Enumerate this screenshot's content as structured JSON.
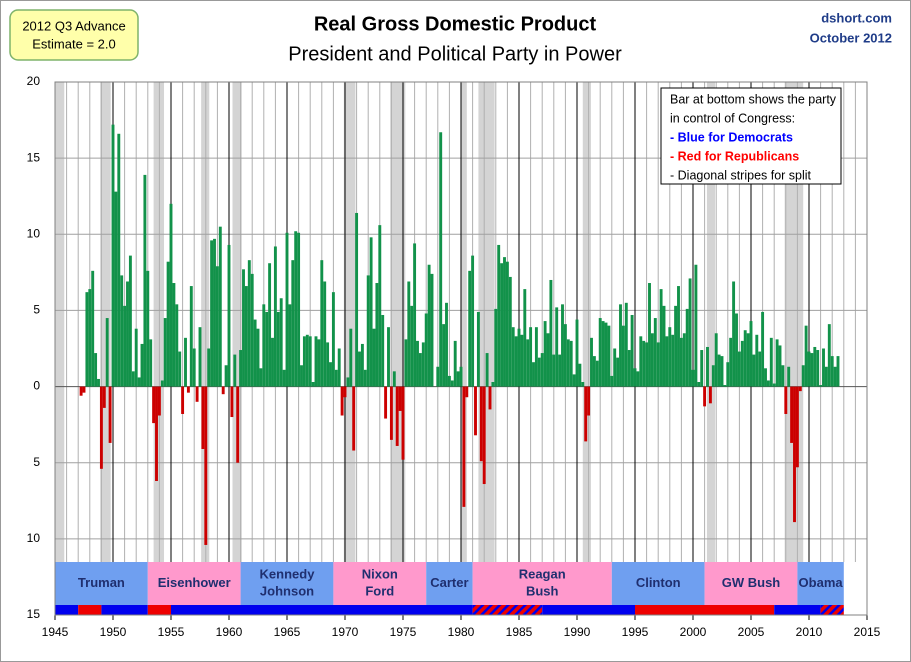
{
  "chart_data": {
    "type": "bar",
    "title": "Real Gross Domestic Product",
    "subtitle": "President and Political Party in Power",
    "source": [
      "dshort.com",
      "October 2012"
    ],
    "estimate_note": [
      "2012 Q3 Advance",
      "Estimate = 2.0"
    ],
    "legend_note": [
      {
        "text": "Bar at bottom shows the party",
        "color": "#000000"
      },
      {
        "text": "in control of Congress:",
        "color": "#000000"
      },
      {
        "text": "-  Blue for  Democrats",
        "color": "#0000ff"
      },
      {
        "text": "-  Red for Republicans",
        "color": "#ff0000"
      },
      {
        "text": "-  Diagonal stripes for split",
        "color": "#000000"
      }
    ],
    "colors": {
      "positive": "#12924a",
      "negative": "#cc0000",
      "recession": "#d4d4d4",
      "D_president": "#6f9ff0",
      "R_president": "#ff99cc",
      "D_congress": "#0000ee",
      "R_congress": "#ee0000"
    },
    "xlim": [
      1945,
      2015
    ],
    "xticks": [
      1945,
      1950,
      1955,
      1960,
      1965,
      1970,
      1975,
      1980,
      1985,
      1990,
      1995,
      2000,
      2005,
      2010,
      2015
    ],
    "x_minor_grid": true,
    "ylim": [
      -15,
      20
    ],
    "yticks": [
      {
        "value": -15,
        "label": "15"
      },
      {
        "value": -10,
        "label": "10"
      },
      {
        "value": -5,
        "label": "5"
      },
      0,
      5,
      10,
      15,
      20
    ],
    "grid": true,
    "x": [
      1947.25,
      1947.5,
      1947.75,
      1948,
      1948.25,
      1948.5,
      1948.75,
      1949,
      1949.25,
      1949.5,
      1949.75,
      1950,
      1950.25,
      1950.5,
      1950.75,
      1951,
      1951.25,
      1951.5,
      1951.75,
      1952,
      1952.25,
      1952.5,
      1952.75,
      1953,
      1953.25,
      1953.5,
      1953.75,
      1954,
      1954.25,
      1954.5,
      1954.75,
      1955,
      1955.25,
      1955.5,
      1955.75,
      1956,
      1956.25,
      1956.5,
      1956.75,
      1957,
      1957.25,
      1957.5,
      1957.75,
      1958,
      1958.25,
      1958.5,
      1958.75,
      1959,
      1959.25,
      1959.5,
      1959.75,
      1960,
      1960.25,
      1960.5,
      1960.75,
      1961,
      1961.25,
      1961.5,
      1961.75,
      1962,
      1962.25,
      1962.5,
      1962.75,
      1963,
      1963.25,
      1963.5,
      1963.75,
      1964,
      1964.25,
      1964.5,
      1964.75,
      1965,
      1965.25,
      1965.5,
      1965.75,
      1966,
      1966.25,
      1966.5,
      1966.75,
      1967,
      1967.25,
      1967.5,
      1967.75,
      1968,
      1968.25,
      1968.5,
      1968.75,
      1969,
      1969.25,
      1969.5,
      1969.75,
      1970,
      1970.25,
      1970.5,
      1970.75,
      1971,
      1971.25,
      1971.5,
      1971.75,
      1972,
      1972.25,
      1972.5,
      1972.75,
      1973,
      1973.25,
      1973.5,
      1973.75,
      1974,
      1974.25,
      1974.5,
      1974.75,
      1975,
      1975.25,
      1975.5,
      1975.75,
      1976,
      1976.25,
      1976.5,
      1976.75,
      1977,
      1977.25,
      1977.5,
      1977.75,
      1978,
      1978.25,
      1978.5,
      1978.75,
      1979,
      1979.25,
      1979.5,
      1979.75,
      1980,
      1980.25,
      1980.5,
      1980.75,
      1981,
      1981.25,
      1981.5,
      1981.75,
      1982,
      1982.25,
      1982.5,
      1982.75,
      1983,
      1983.25,
      1983.5,
      1983.75,
      1984,
      1984.25,
      1984.5,
      1984.75,
      1985,
      1985.25,
      1985.5,
      1985.75,
      1986,
      1986.25,
      1986.5,
      1986.75,
      1987,
      1987.25,
      1987.5,
      1987.75,
      1988,
      1988.25,
      1988.5,
      1988.75,
      1989,
      1989.25,
      1989.5,
      1989.75,
      1990,
      1990.25,
      1990.5,
      1990.75,
      1991,
      1991.25,
      1991.5,
      1991.75,
      1992,
      1992.25,
      1992.5,
      1992.75,
      1993,
      1993.25,
      1993.5,
      1993.75,
      1994,
      1994.25,
      1994.5,
      1994.75,
      1995,
      1995.25,
      1995.5,
      1995.75,
      1996,
      1996.25,
      1996.5,
      1996.75,
      1997,
      1997.25,
      1997.5,
      1997.75,
      1998,
      1998.25,
      1998.5,
      1998.75,
      1999,
      1999.25,
      1999.5,
      1999.75,
      2000,
      2000.25,
      2000.5,
      2000.75,
      2001,
      2001.25,
      2001.5,
      2001.75,
      2002,
      2002.25,
      2002.5,
      2002.75,
      2003,
      2003.25,
      2003.5,
      2003.75,
      2004,
      2004.25,
      2004.5,
      2004.75,
      2005,
      2005.25,
      2005.5,
      2005.75,
      2006,
      2006.25,
      2006.5,
      2006.75,
      2007,
      2007.25,
      2007.5,
      2007.75,
      2008,
      2008.25,
      2008.5,
      2008.75,
      2009,
      2009.25,
      2009.5,
      2009.75,
      2010,
      2010.25,
      2010.5,
      2010.75,
      2011,
      2011.25,
      2011.5,
      2011.75,
      2012,
      2012.25,
      2012.5
    ],
    "values": [
      -0.6,
      -0.4,
      6.2,
      6.4,
      7.6,
      2.2,
      0.5,
      -5.4,
      -1.4,
      4.5,
      -3.7,
      17.2,
      12.8,
      16.6,
      7.3,
      5.3,
      6.9,
      8.6,
      1.0,
      3.8,
      0.6,
      2.8,
      13.9,
      7.6,
      3.1,
      -2.4,
      -6.2,
      -1.9,
      0.4,
      4.5,
      8.2,
      12.0,
      6.8,
      5.4,
      2.3,
      -1.8,
      3.2,
      -0.4,
      6.6,
      2.5,
      -1.0,
      3.9,
      -4.1,
      -10.4,
      2.5,
      9.6,
      9.7,
      7.9,
      10.5,
      -0.5,
      1.4,
      9.3,
      -2.0,
      2.1,
      -5.0,
      2.4,
      7.7,
      6.6,
      8.3,
      7.4,
      4.4,
      3.8,
      1.2,
      5.4,
      4.9,
      8.1,
      3.2,
      9.2,
      4.9,
      5.8,
      1.1,
      10.1,
      5.4,
      8.3,
      10.2,
      10.1,
      1.4,
      3.3,
      3.4,
      3.3,
      0.3,
      3.3,
      3.1,
      8.3,
      6.9,
      2.9,
      1.6,
      6.2,
      1.1,
      2.5,
      -1.9,
      -0.7,
      0.6,
      3.8,
      -4.2,
      11.4,
      2.3,
      2.8,
      1.1,
      7.3,
      9.8,
      3.8,
      6.8,
      10.6,
      4.7,
      -2.1,
      3.9,
      -3.5,
      1.0,
      -3.9,
      -1.6,
      -4.8,
      3.1,
      6.9,
      5.3,
      9.4,
      3.0,
      2.2,
      2.9,
      4.8,
      8.0,
      7.4,
      0.0,
      1.3,
      16.7,
      4.1,
      5.5,
      0.7,
      0.4,
      3.0,
      1.0,
      1.3,
      -7.9,
      -0.7,
      7.6,
      8.6,
      -3.2,
      4.9,
      -4.9,
      -6.4,
      2.2,
      -1.5,
      0.3,
      5.1,
      9.3,
      8.1,
      8.5,
      8.2,
      7.2,
      3.9,
      3.3,
      3.8,
      3.4,
      6.4,
      3.1,
      3.9,
      1.6,
      3.9,
      1.9,
      2.2,
      4.3,
      3.5,
      7.0,
      2.1,
      5.2,
      2.1,
      5.4,
      4.1,
      3.1,
      3.0,
      0.8,
      4.4,
      1.5,
      0.3,
      -3.6,
      -1.9,
      3.2,
      2.0,
      1.7,
      4.5,
      4.3,
      4.2,
      4.0,
      0.7,
      2.5,
      1.9,
      5.4,
      4.0,
      5.5,
      2.4,
      4.7,
      1.2,
      1.0,
      3.3,
      3.0,
      2.9,
      6.8,
      3.5,
      4.5,
      2.9,
      6.4,
      5.3,
      3.3,
      3.9,
      3.4,
      5.3,
      6.6,
      3.2,
      3.5,
      5.1,
      7.1,
      1.1,
      8.0,
      0.3,
      2.4,
      -1.3,
      2.6,
      -1.1,
      1.4,
      3.5,
      2.1,
      2.0,
      0.1,
      1.6,
      3.2,
      6.9,
      4.8,
      2.3,
      3.0,
      3.7,
      3.5,
      4.3,
      2.1,
      3.4,
      2.3,
      4.9,
      1.2,
      0.4,
      3.2,
      0.2,
      3.1,
      2.7,
      1.4,
      -1.8,
      1.3,
      -3.7,
      -8.9,
      -5.3,
      -0.3,
      1.4,
      4.0,
      2.3,
      2.2,
      2.6,
      2.4,
      0.1,
      2.5,
      1.3,
      4.1,
      2.0,
      1.3,
      2.0
    ],
    "recessions": [
      [
        1945,
        1945.8
      ],
      [
        1948.9,
        1949.8
      ],
      [
        1953.5,
        1954.4
      ],
      [
        1957.6,
        1958.3
      ],
      [
        1960.3,
        1961.1
      ],
      [
        1969.9,
        1970.9
      ],
      [
        1973.9,
        1975.2
      ],
      [
        1980,
        1980.5
      ],
      [
        1981.5,
        1982.9
      ],
      [
        1990.5,
        1991.2
      ],
      [
        2001.2,
        2001.9
      ],
      [
        2007.9,
        2009.5
      ]
    ],
    "presidents": [
      {
        "name_lines": [
          "Truman"
        ],
        "start": 1945,
        "end": 1953,
        "party": "D"
      },
      {
        "name_lines": [
          "Eisenhower"
        ],
        "start": 1953,
        "end": 1961,
        "party": "R"
      },
      {
        "name_lines": [
          "Kennedy",
          "Johnson"
        ],
        "start": 1961,
        "end": 1969,
        "party": "D"
      },
      {
        "name_lines": [
          "Nixon",
          "Ford"
        ],
        "start": 1969,
        "end": 1977,
        "party": "R"
      },
      {
        "name_lines": [
          "Carter"
        ],
        "start": 1977,
        "end": 1981,
        "party": "D"
      },
      {
        "name_lines": [
          "Reagan",
          "Bush"
        ],
        "start": 1981,
        "end": 1993,
        "party": "R"
      },
      {
        "name_lines": [
          "Clinton"
        ],
        "start": 1993,
        "end": 2001,
        "party": "D"
      },
      {
        "name_lines": [
          "GW Bush"
        ],
        "start": 2001,
        "end": 2009,
        "party": "R"
      },
      {
        "name_lines": [
          "Obama"
        ],
        "start": 2009,
        "end": 2013,
        "party": "D"
      }
    ],
    "congress": [
      {
        "start": 1945,
        "end": 1947,
        "party": "D"
      },
      {
        "start": 1947,
        "end": 1949,
        "party": "R"
      },
      {
        "start": 1949,
        "end": 1953,
        "party": "D"
      },
      {
        "start": 1953,
        "end": 1955,
        "party": "R"
      },
      {
        "start": 1955,
        "end": 1981,
        "party": "D"
      },
      {
        "start": 1981,
        "end": 1987,
        "party": "split"
      },
      {
        "start": 1987,
        "end": 1995,
        "party": "D"
      },
      {
        "start": 1995,
        "end": 2007,
        "party": "R"
      },
      {
        "start": 2007,
        "end": 2011,
        "party": "D"
      },
      {
        "start": 2011,
        "end": 2013,
        "party": "split"
      }
    ]
  }
}
